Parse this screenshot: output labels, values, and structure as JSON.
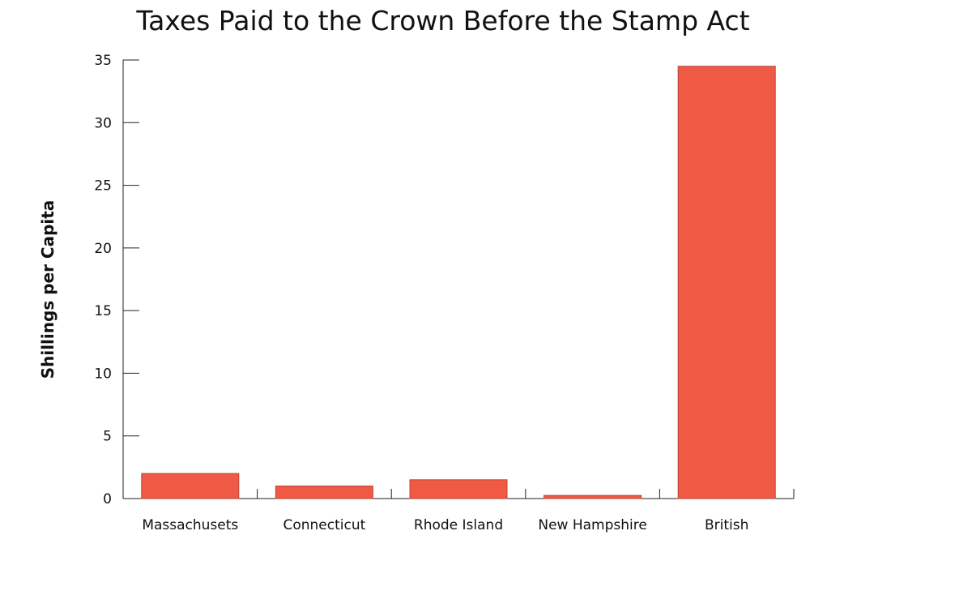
{
  "chart_data": {
    "type": "bar",
    "title": "Taxes Paid to the Crown Before the Stamp Act",
    "xlabel": "",
    "ylabel": "Shillings per Capita",
    "categories": [
      "Massachusets",
      "Connecticut",
      "Rhode Island",
      "New Hampshire",
      "British"
    ],
    "values": [
      2.0,
      1.0,
      1.5,
      0.25,
      34.5
    ],
    "ylim": [
      0,
      35
    ],
    "yticks": [
      "0",
      "5",
      "10",
      "15",
      "20",
      "25",
      "30",
      "35"
    ],
    "grid": false,
    "legend": "none",
    "colors": {
      "bar": "#f05a44",
      "bar_edge": "#b84535"
    }
  }
}
